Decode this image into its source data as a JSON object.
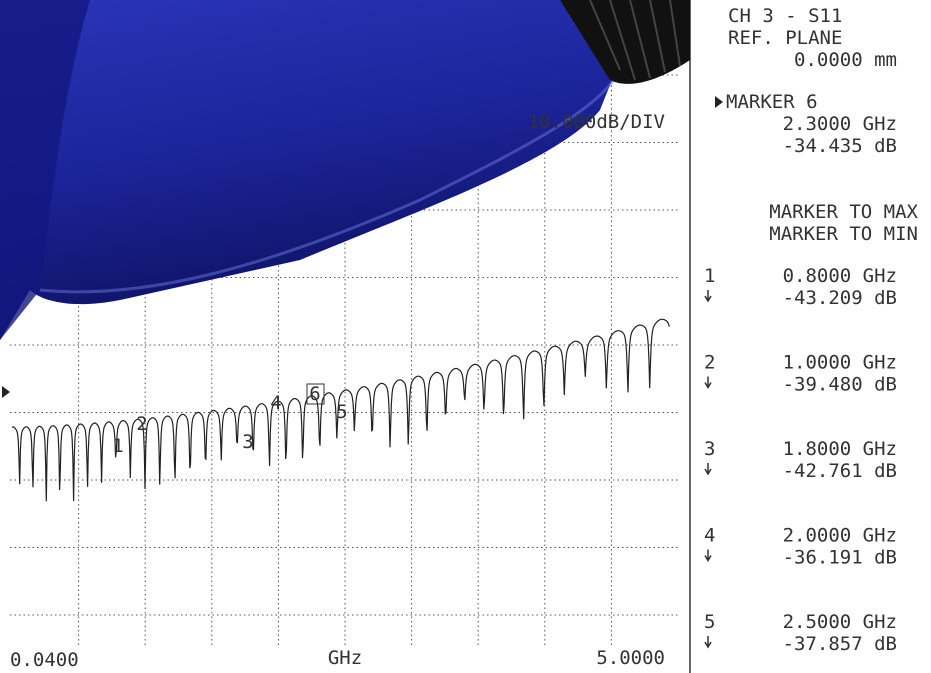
{
  "header": {
    "channel": "CH 3 - S11",
    "ref_plane": "REF. PLANE",
    "ref_value": "0.0000 mm"
  },
  "active_marker": {
    "label": "MARKER 6",
    "freq": "2.3000 GHz",
    "value": "-34.435 dB"
  },
  "scale": "10.000dB/DIV",
  "menu": [
    "MARKER TO MAX",
    "MARKER TO MIN"
  ],
  "markers": [
    {
      "id": "1",
      "freq": "0.8000 GHz",
      "value": "-43.209 dB"
    },
    {
      "id": "2",
      "freq": "1.0000 GHz",
      "value": "-39.480 dB"
    },
    {
      "id": "3",
      "freq": "1.8000 GHz",
      "value": "-42.761 dB"
    },
    {
      "id": "4",
      "freq": "2.0000 GHz",
      "value": "-36.191 dB"
    },
    {
      "id": "5",
      "freq": "2.5000 GHz",
      "value": "-37.857 dB"
    }
  ],
  "trace_labels": [
    "1",
    "2",
    "3",
    "4",
    "6",
    "5"
  ],
  "axis": {
    "start": "0.0400",
    "unit": "GHz",
    "stop": "5.0000"
  }
}
